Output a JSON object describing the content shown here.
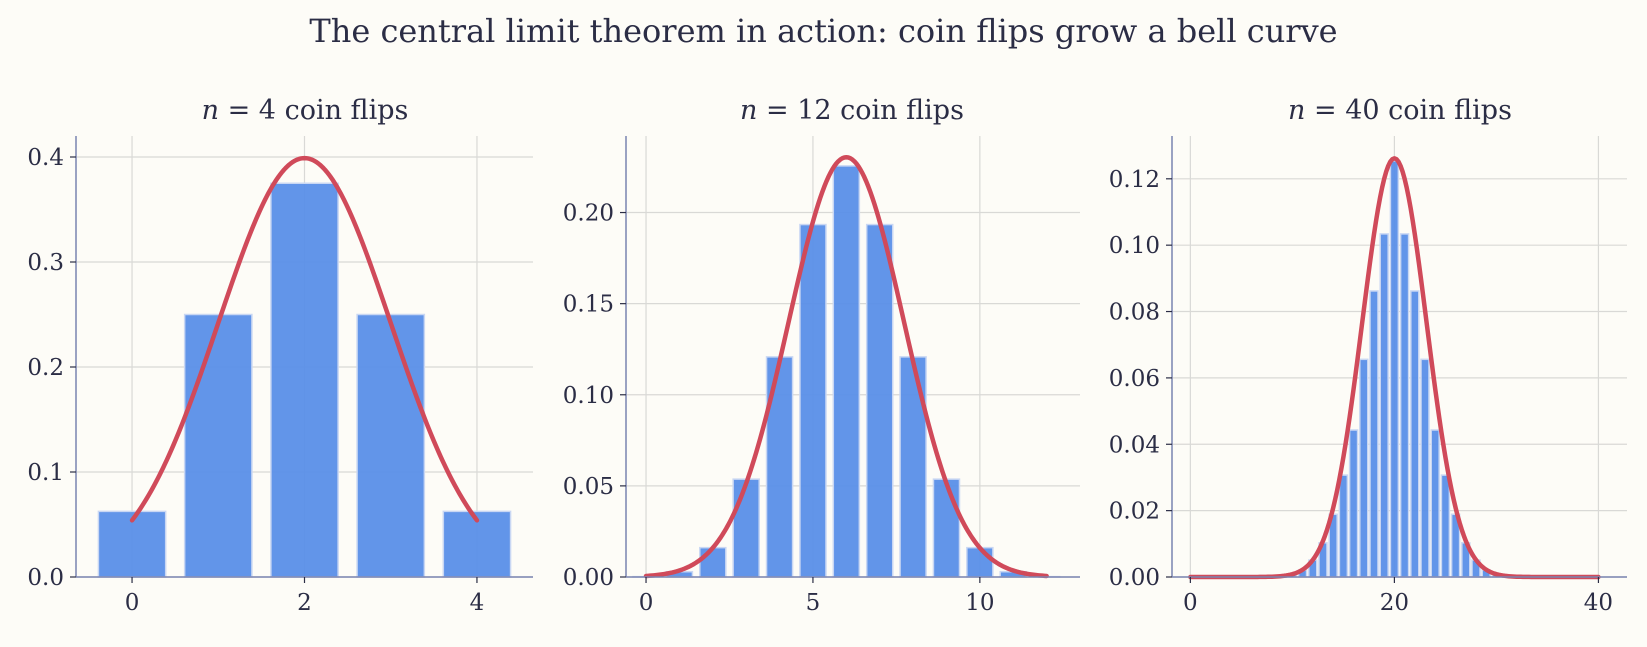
{
  "figure": {
    "title": "The central limit theorem in action: coin flips grow a bell curve"
  },
  "colors": {
    "bars": "#5a8fe8",
    "curve": "#d04a5a",
    "background": "#fdfcf7",
    "spine": "#7a83b0",
    "grid": "#d9d9d6"
  },
  "chart_data": [
    {
      "type": "bar",
      "title_var": "n",
      "title_n": "4",
      "title_suffix": "coin flips",
      "n": 4,
      "x": [
        0,
        1,
        2,
        3,
        4
      ],
      "values": [
        0.0625,
        0.25,
        0.375,
        0.25,
        0.0625
      ],
      "overlay": {
        "type": "line",
        "mean": 2,
        "sd": 1,
        "x_range": [
          0,
          4
        ]
      },
      "xlim": [
        -0.65,
        4.65
      ],
      "ylim": [
        0,
        0.42
      ],
      "xticks": [
        0,
        2,
        4
      ],
      "xtick_labels": [
        "0",
        "2",
        "4"
      ],
      "yticks": [
        0.0,
        0.1,
        0.2,
        0.3,
        0.4
      ],
      "ytick_labels": [
        "0.0",
        "0.1",
        "0.2",
        "0.3",
        "0.4"
      ],
      "grid": true
    },
    {
      "type": "bar",
      "title_var": "n",
      "title_n": "12",
      "title_suffix": "coin flips",
      "n": 12,
      "x": [
        0,
        1,
        2,
        3,
        4,
        5,
        6,
        7,
        8,
        9,
        10,
        11,
        12
      ],
      "values": [
        0.0002,
        0.0029,
        0.0161,
        0.0537,
        0.1208,
        0.1934,
        0.2256,
        0.1934,
        0.1208,
        0.0537,
        0.0161,
        0.0029,
        0.0002
      ],
      "overlay": {
        "type": "line",
        "mean": 6,
        "sd": 1.732,
        "x_range": [
          0,
          12
        ]
      },
      "xlim": [
        -0.6,
        13
      ],
      "ylim": [
        0,
        0.242
      ],
      "xticks": [
        0,
        5,
        10
      ],
      "xtick_labels": [
        "0",
        "5",
        "10"
      ],
      "yticks": [
        0.0,
        0.05,
        0.1,
        0.15,
        0.2
      ],
      "ytick_labels": [
        "0.00",
        "0.05",
        "0.10",
        "0.15",
        "0.20"
      ],
      "grid": true
    },
    {
      "type": "bar",
      "title_var": "n",
      "title_n": "40",
      "title_suffix": "coin flips",
      "n": 40,
      "x": [
        0,
        1,
        2,
        3,
        4,
        5,
        6,
        7,
        8,
        9,
        10,
        11,
        12,
        13,
        14,
        15,
        16,
        17,
        18,
        19,
        20,
        21,
        22,
        23,
        24,
        25,
        26,
        27,
        28,
        29,
        30,
        31,
        32,
        33,
        34,
        35,
        36,
        37,
        38,
        39,
        40
      ],
      "values": [
        0,
        0,
        0,
        0,
        0,
        0,
        0,
        0,
        0.0001,
        0.0005,
        0.0008,
        0.0021,
        0.0051,
        0.0103,
        0.0189,
        0.0307,
        0.0443,
        0.0656,
        0.0862,
        0.1034,
        0.1254,
        0.1034,
        0.0862,
        0.0656,
        0.0443,
        0.0307,
        0.0189,
        0.0103,
        0.0051,
        0.0021,
        0.0008,
        0.0005,
        0.0001,
        0,
        0,
        0,
        0,
        0,
        0,
        0,
        0
      ],
      "overlay": {
        "type": "line",
        "mean": 20,
        "sd": 3.162,
        "x_range": [
          0,
          40
        ]
      },
      "xlim": [
        -1.8,
        42.8
      ],
      "ylim": [
        0,
        0.1329
      ],
      "xticks": [
        0,
        20,
        40
      ],
      "xtick_labels": [
        "0",
        "20",
        "40"
      ],
      "yticks": [
        0.0,
        0.02,
        0.04,
        0.06,
        0.08,
        0.1,
        0.12
      ],
      "ytick_labels": [
        "0.00",
        "0.02",
        "0.04",
        "0.06",
        "0.08",
        "0.10",
        "0.12"
      ],
      "grid": true
    }
  ]
}
